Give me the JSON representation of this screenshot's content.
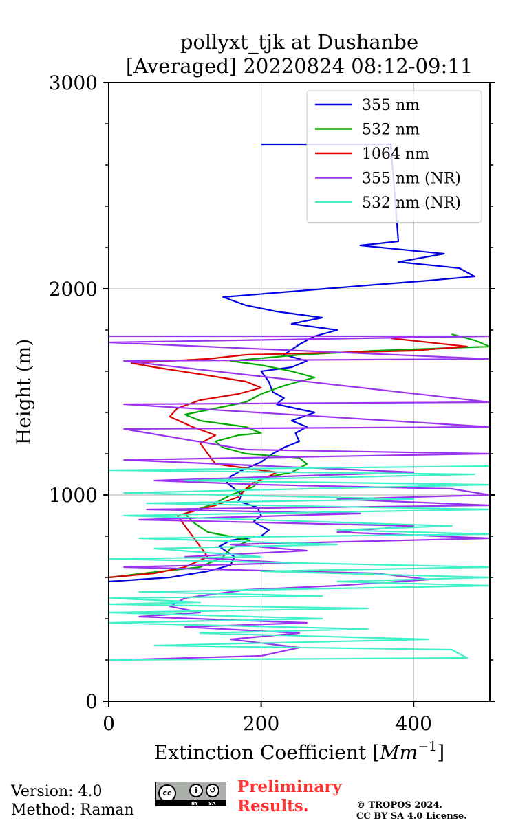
{
  "chart_data": {
    "type": "line",
    "title_line1": "pollyxt_tjk at Dushanbe",
    "title_line2": "[Averaged] 20220824 08:12-09:11",
    "xlabel_prefix": "Extinction Coefficient [",
    "xlabel_unit": "Mm",
    "xlabel_exp": "−1",
    "xlabel_suffix": "]",
    "ylabel": "Height (m)",
    "xlim": [
      0,
      500
    ],
    "ylim": [
      0,
      3000
    ],
    "xticks": [
      0,
      200,
      400
    ],
    "yticks": [
      0,
      1000,
      2000,
      3000
    ],
    "yminor_step": 200,
    "grid": true,
    "legend_position": "top-right",
    "series": [
      {
        "name": "355 nm",
        "color": "#0000e0",
        "points": [
          [
            0,
            580
          ],
          [
            80,
            600
          ],
          [
            130,
            630
          ],
          [
            160,
            660
          ],
          [
            165,
            700
          ],
          [
            145,
            750
          ],
          [
            160,
            780
          ],
          [
            200,
            800
          ],
          [
            210,
            830
          ],
          [
            190,
            870
          ],
          [
            200,
            900
          ],
          [
            195,
            940
          ],
          [
            170,
            970
          ],
          [
            175,
            1000
          ],
          [
            165,
            1030
          ],
          [
            155,
            1060
          ],
          [
            160,
            1090
          ],
          [
            175,
            1120
          ],
          [
            200,
            1160
          ],
          [
            215,
            1200
          ],
          [
            230,
            1230
          ],
          [
            250,
            1260
          ],
          [
            245,
            1300
          ],
          [
            260,
            1330
          ],
          [
            240,
            1360
          ],
          [
            270,
            1400
          ],
          [
            220,
            1440
          ],
          [
            230,
            1470
          ],
          [
            215,
            1500
          ],
          [
            210,
            1550
          ],
          [
            200,
            1600
          ],
          [
            240,
            1620
          ],
          [
            260,
            1650
          ],
          [
            230,
            1680
          ],
          [
            250,
            1730
          ],
          [
            270,
            1770
          ],
          [
            300,
            1800
          ],
          [
            240,
            1830
          ],
          [
            280,
            1860
          ],
          [
            220,
            1890
          ],
          [
            180,
            1920
          ],
          [
            150,
            1960
          ],
          [
            250,
            1990
          ],
          [
            350,
            2020
          ],
          [
            420,
            2040
          ],
          [
            480,
            2060
          ],
          [
            460,
            2100
          ],
          [
            380,
            2130
          ],
          [
            440,
            2170
          ],
          [
            330,
            2210
          ],
          [
            380,
            2230
          ],
          [
            370,
            2700
          ],
          [
            200,
            2700
          ]
        ]
      },
      {
        "name": "532 nm",
        "color": "#00aa00",
        "points": [
          [
            0,
            600
          ],
          [
            70,
            630
          ],
          [
            120,
            650
          ],
          [
            150,
            700
          ],
          [
            160,
            740
          ],
          [
            185,
            780
          ],
          [
            130,
            820
          ],
          [
            110,
            870
          ],
          [
            100,
            910
          ],
          [
            140,
            960
          ],
          [
            160,
            1000
          ],
          [
            190,
            1040
          ],
          [
            200,
            1080
          ],
          [
            240,
            1110
          ],
          [
            260,
            1150
          ],
          [
            250,
            1180
          ],
          [
            180,
            1200
          ],
          [
            150,
            1230
          ],
          [
            140,
            1260
          ],
          [
            170,
            1290
          ],
          [
            200,
            1300
          ],
          [
            180,
            1330
          ],
          [
            120,
            1360
          ],
          [
            100,
            1390
          ],
          [
            140,
            1420
          ],
          [
            180,
            1450
          ],
          [
            200,
            1490
          ],
          [
            230,
            1530
          ],
          [
            270,
            1570
          ],
          [
            240,
            1600
          ],
          [
            200,
            1630
          ],
          [
            160,
            1650
          ],
          [
            250,
            1680
          ],
          [
            350,
            1700
          ],
          [
            500,
            1720
          ],
          [
            480,
            1750
          ],
          [
            450,
            1780
          ]
        ]
      },
      {
        "name": "1064 nm",
        "color": "#dd0000",
        "points": [
          [
            0,
            600
          ],
          [
            60,
            620
          ],
          [
            100,
            650
          ],
          [
            130,
            700
          ],
          [
            120,
            750
          ],
          [
            110,
            800
          ],
          [
            100,
            850
          ],
          [
            90,
            900
          ],
          [
            140,
            950
          ],
          [
            170,
            990
          ],
          [
            180,
            1030
          ],
          [
            190,
            1060
          ],
          [
            210,
            1090
          ],
          [
            220,
            1110
          ],
          [
            180,
            1130
          ],
          [
            140,
            1150
          ],
          [
            130,
            1200
          ],
          [
            120,
            1250
          ],
          [
            140,
            1290
          ],
          [
            110,
            1330
          ],
          [
            80,
            1380
          ],
          [
            90,
            1420
          ],
          [
            120,
            1460
          ],
          [
            170,
            1490
          ],
          [
            200,
            1520
          ],
          [
            180,
            1550
          ],
          [
            130,
            1580
          ],
          [
            60,
            1620
          ],
          [
            30,
            1640
          ],
          [
            130,
            1660
          ],
          [
            180,
            1680
          ],
          [
            400,
            1700
          ],
          [
            470,
            1720
          ],
          [
            370,
            1760
          ]
        ]
      },
      {
        "name": "355 nm (NR)",
        "color": "#9933ee",
        "points": [
          [
            10,
            200
          ],
          [
            200,
            220
          ],
          [
            250,
            260
          ],
          [
            160,
            300
          ],
          [
            250,
            330
          ],
          [
            100,
            360
          ],
          [
            260,
            380
          ],
          [
            40,
            410
          ],
          [
            120,
            430
          ],
          [
            80,
            460
          ],
          [
            100,
            500
          ],
          [
            180,
            540
          ],
          [
            300,
            560
          ],
          [
            420,
            590
          ],
          [
            350,
            620
          ],
          [
            20,
            650
          ],
          [
            240,
            670
          ],
          [
            100,
            700
          ],
          [
            260,
            730
          ],
          [
            160,
            760
          ],
          [
            500,
            790
          ],
          [
            300,
            820
          ],
          [
            400,
            850
          ],
          [
            40,
            880
          ],
          [
            330,
            910
          ],
          [
            50,
            930
          ],
          [
            500,
            950
          ],
          [
            300,
            980
          ],
          [
            500,
            1000
          ],
          [
            450,
            1030
          ],
          [
            200,
            1050
          ],
          [
            60,
            1070
          ],
          [
            400,
            1110
          ],
          [
            20,
            1170
          ],
          [
            500,
            1200
          ],
          [
            180,
            1220
          ],
          [
            20,
            1320
          ],
          [
            500,
            1330
          ],
          [
            20,
            1440
          ],
          [
            500,
            1450
          ],
          [
            20,
            1650
          ],
          [
            500,
            1660
          ],
          [
            0,
            1740
          ],
          [
            500,
            1770
          ],
          [
            0,
            1770
          ]
        ]
      },
      {
        "name": "532 nm (NR)",
        "color": "#40f0c8",
        "points": [
          [
            0,
            200
          ],
          [
            470,
            210
          ],
          [
            450,
            250
          ],
          [
            60,
            270
          ],
          [
            420,
            300
          ],
          [
            120,
            330
          ],
          [
            340,
            350
          ],
          [
            0,
            380
          ],
          [
            280,
            400
          ],
          [
            0,
            430
          ],
          [
            340,
            450
          ],
          [
            0,
            470
          ],
          [
            120,
            480
          ],
          [
            0,
            500
          ],
          [
            280,
            510
          ],
          [
            40,
            530
          ],
          [
            500,
            560
          ],
          [
            300,
            580
          ],
          [
            500,
            600
          ],
          [
            200,
            630
          ],
          [
            500,
            650
          ],
          [
            0,
            690
          ],
          [
            200,
            700
          ],
          [
            60,
            740
          ],
          [
            300,
            760
          ],
          [
            40,
            790
          ],
          [
            500,
            810
          ],
          [
            300,
            830
          ],
          [
            450,
            850
          ],
          [
            20,
            900
          ],
          [
            500,
            930
          ],
          [
            50,
            960
          ],
          [
            400,
            980
          ],
          [
            20,
            1010
          ],
          [
            500,
            1050
          ],
          [
            100,
            1070
          ],
          [
            480,
            1100
          ],
          [
            0,
            1120
          ],
          [
            500,
            1140
          ]
        ]
      }
    ]
  },
  "footer": {
    "version": "Version: 4.0",
    "method": "Method: Raman",
    "preliminary_line1": "Preliminary",
    "preliminary_line2": "Results.",
    "copyright_line1": "© TROPOS 2024.",
    "copyright_line2": "CC BY SA 4.0 License.",
    "badge_cc": "cc",
    "badge_by": "BY",
    "badge_sa": "SA"
  }
}
